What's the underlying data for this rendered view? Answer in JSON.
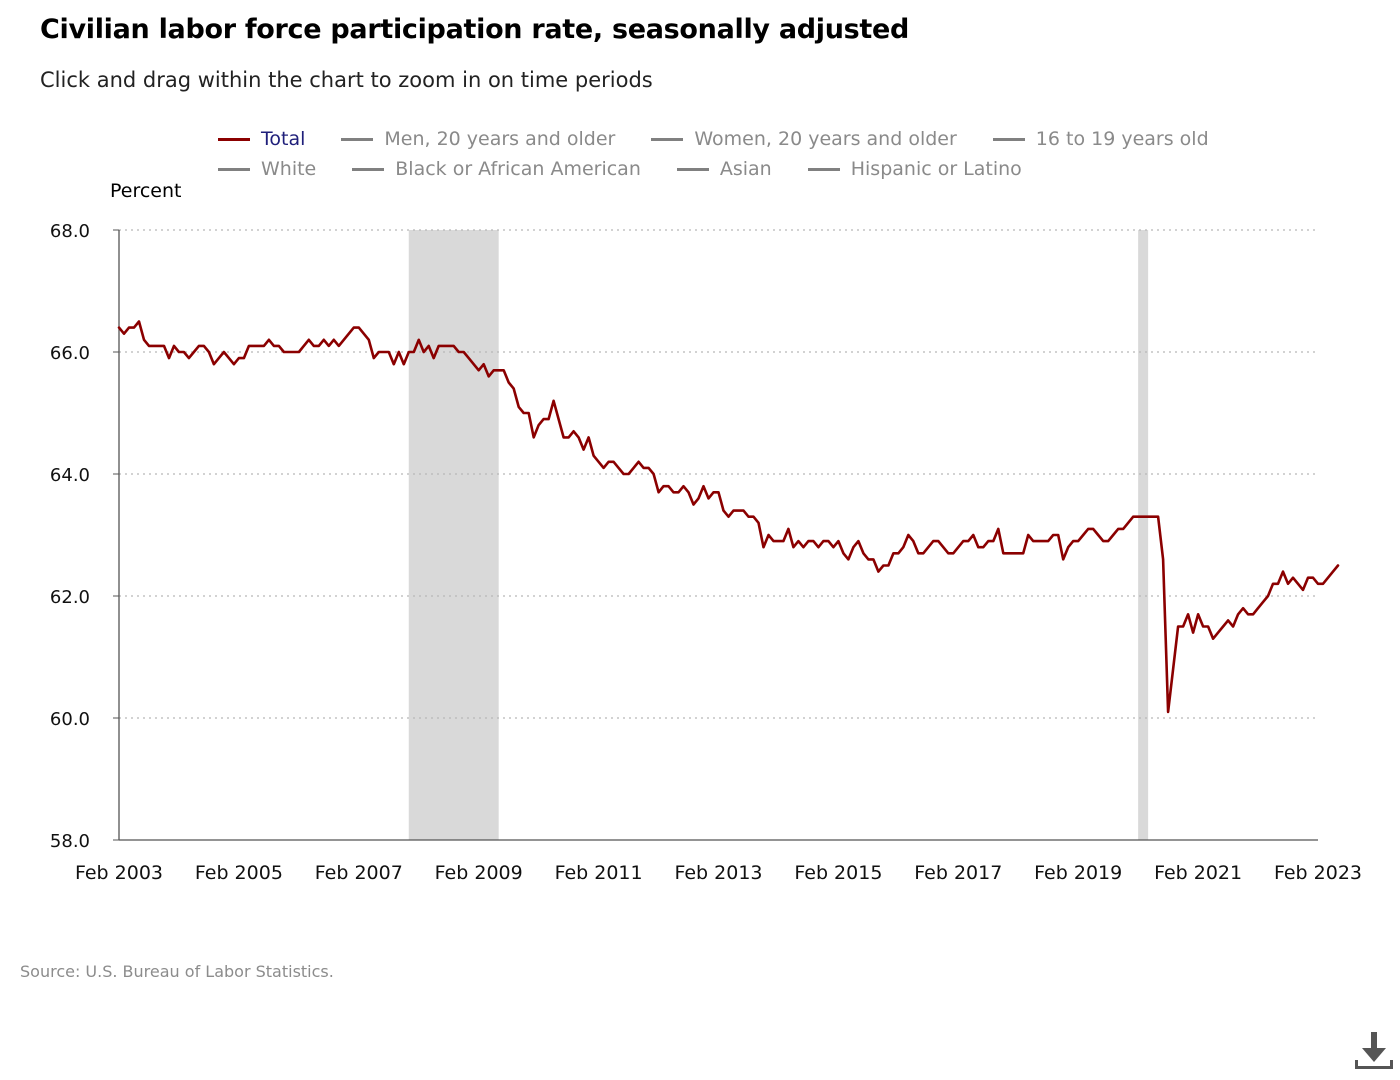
{
  "title": "Civilian labor force participation rate, seasonally adjusted",
  "subtitle": "Click and drag within the chart to zoom in on time periods",
  "source": "Source: U.S. Bureau of Labor Statistics.",
  "legend": {
    "row1": [
      {
        "label": "Total",
        "color": "#8b0000",
        "active": true
      },
      {
        "label": "Men, 20 years and older",
        "color": "#808080",
        "active": false
      },
      {
        "label": "Women, 20 years and older",
        "color": "#808080",
        "active": false
      },
      {
        "label": "16 to 19 years old",
        "color": "#808080",
        "active": false
      }
    ],
    "row2": [
      {
        "label": "White",
        "color": "#808080",
        "active": false
      },
      {
        "label": "Black or African American",
        "color": "#808080",
        "active": false
      },
      {
        "label": "Asian",
        "color": "#808080",
        "active": false
      },
      {
        "label": "Hispanic or Latino",
        "color": "#808080",
        "active": false
      }
    ]
  },
  "icons": {
    "download": "download-icon"
  },
  "chart_data": {
    "type": "line",
    "title": "Civilian labor force participation rate, seasonally adjusted",
    "ylabel": "Percent",
    "xlabel": "",
    "ylim": [
      58.0,
      68.0
    ],
    "yticks": [
      "58.0",
      "60.0",
      "62.0",
      "64.0",
      "66.0",
      "68.0"
    ],
    "xlim": [
      "2003-02",
      "2023-02"
    ],
    "xticks": [
      "Feb 2003",
      "Feb 2005",
      "Feb 2007",
      "Feb 2009",
      "Feb 2011",
      "Feb 2013",
      "Feb 2015",
      "Feb 2017",
      "Feb 2019",
      "Feb 2021",
      "Feb 2023"
    ],
    "grid": "horizontal dotted",
    "legend_position": "top",
    "line_color": "#8b0000",
    "recession_color": "#d9d9d9",
    "recessions": [
      {
        "start": "2007-12",
        "end": "2009-06"
      },
      {
        "start": "2020-02",
        "end": "2020-04"
      }
    ],
    "series": [
      {
        "name": "Total",
        "points": [
          [
            "2003-02",
            66.4
          ],
          [
            "2003-03",
            66.3
          ],
          [
            "2003-04",
            66.4
          ],
          [
            "2003-05",
            66.4
          ],
          [
            "2003-06",
            66.5
          ],
          [
            "2003-07",
            66.2
          ],
          [
            "2003-08",
            66.1
          ],
          [
            "2003-09",
            66.1
          ],
          [
            "2003-10",
            66.1
          ],
          [
            "2003-11",
            66.1
          ],
          [
            "2003-12",
            65.9
          ],
          [
            "2004-01",
            66.1
          ],
          [
            "2004-02",
            66.0
          ],
          [
            "2004-03",
            66.0
          ],
          [
            "2004-04",
            65.9
          ],
          [
            "2004-05",
            66.0
          ],
          [
            "2004-06",
            66.1
          ],
          [
            "2004-07",
            66.1
          ],
          [
            "2004-08",
            66.0
          ],
          [
            "2004-09",
            65.8
          ],
          [
            "2004-10",
            65.9
          ],
          [
            "2004-11",
            66.0
          ],
          [
            "2004-12",
            65.9
          ],
          [
            "2005-01",
            65.8
          ],
          [
            "2005-02",
            65.9
          ],
          [
            "2005-03",
            65.9
          ],
          [
            "2005-04",
            66.1
          ],
          [
            "2005-05",
            66.1
          ],
          [
            "2005-06",
            66.1
          ],
          [
            "2005-07",
            66.1
          ],
          [
            "2005-08",
            66.2
          ],
          [
            "2005-09",
            66.1
          ],
          [
            "2005-10",
            66.1
          ],
          [
            "2005-11",
            66.0
          ],
          [
            "2005-12",
            66.0
          ],
          [
            "2006-01",
            66.0
          ],
          [
            "2006-02",
            66.0
          ],
          [
            "2006-03",
            66.1
          ],
          [
            "2006-04",
            66.2
          ],
          [
            "2006-05",
            66.1
          ],
          [
            "2006-06",
            66.1
          ],
          [
            "2006-07",
            66.2
          ],
          [
            "2006-08",
            66.1
          ],
          [
            "2006-09",
            66.2
          ],
          [
            "2006-10",
            66.1
          ],
          [
            "2006-11",
            66.2
          ],
          [
            "2006-12",
            66.3
          ],
          [
            "2007-01",
            66.4
          ],
          [
            "2007-02",
            66.4
          ],
          [
            "2007-03",
            66.3
          ],
          [
            "2007-04",
            66.2
          ],
          [
            "2007-05",
            65.9
          ],
          [
            "2007-06",
            66.0
          ],
          [
            "2007-07",
            66.0
          ],
          [
            "2007-08",
            66.0
          ],
          [
            "2007-09",
            65.8
          ],
          [
            "2007-10",
            66.0
          ],
          [
            "2007-11",
            65.8
          ],
          [
            "2007-12",
            66.0
          ],
          [
            "2008-01",
            66.0
          ],
          [
            "2008-02",
            66.2
          ],
          [
            "2008-03",
            66.0
          ],
          [
            "2008-04",
            66.1
          ],
          [
            "2008-05",
            65.9
          ],
          [
            "2008-06",
            66.1
          ],
          [
            "2008-07",
            66.1
          ],
          [
            "2008-08",
            66.1
          ],
          [
            "2008-09",
            66.1
          ],
          [
            "2008-10",
            66.0
          ],
          [
            "2008-11",
            66.0
          ],
          [
            "2008-12",
            65.9
          ],
          [
            "2009-01",
            65.8
          ],
          [
            "2009-02",
            65.7
          ],
          [
            "2009-03",
            65.8
          ],
          [
            "2009-04",
            65.6
          ],
          [
            "2009-05",
            65.7
          ],
          [
            "2009-06",
            65.7
          ],
          [
            "2009-07",
            65.7
          ],
          [
            "2009-08",
            65.5
          ],
          [
            "2009-09",
            65.4
          ],
          [
            "2009-10",
            65.1
          ],
          [
            "2009-11",
            65.0
          ],
          [
            "2009-12",
            65.0
          ],
          [
            "2010-01",
            64.6
          ],
          [
            "2010-02",
            64.8
          ],
          [
            "2010-03",
            64.9
          ],
          [
            "2010-04",
            64.9
          ],
          [
            "2010-05",
            65.2
          ],
          [
            "2010-06",
            64.9
          ],
          [
            "2010-07",
            64.6
          ],
          [
            "2010-08",
            64.6
          ],
          [
            "2010-09",
            64.7
          ],
          [
            "2010-10",
            64.6
          ],
          [
            "2010-11",
            64.4
          ],
          [
            "2010-12",
            64.6
          ],
          [
            "2011-01",
            64.3
          ],
          [
            "2011-02",
            64.2
          ],
          [
            "2011-03",
            64.1
          ],
          [
            "2011-04",
            64.2
          ],
          [
            "2011-05",
            64.2
          ],
          [
            "2011-06",
            64.1
          ],
          [
            "2011-07",
            64.0
          ],
          [
            "2011-08",
            64.0
          ],
          [
            "2011-09",
            64.1
          ],
          [
            "2011-10",
            64.2
          ],
          [
            "2011-11",
            64.1
          ],
          [
            "2011-12",
            64.1
          ],
          [
            "2012-01",
            64.0
          ],
          [
            "2012-02",
            63.7
          ],
          [
            "2012-03",
            63.8
          ],
          [
            "2012-04",
            63.8
          ],
          [
            "2012-05",
            63.7
          ],
          [
            "2012-06",
            63.7
          ],
          [
            "2012-07",
            63.8
          ],
          [
            "2012-08",
            63.7
          ],
          [
            "2012-09",
            63.5
          ],
          [
            "2012-10",
            63.6
          ],
          [
            "2012-11",
            63.8
          ],
          [
            "2012-12",
            63.6
          ],
          [
            "2013-01",
            63.7
          ],
          [
            "2013-02",
            63.7
          ],
          [
            "2013-03",
            63.4
          ],
          [
            "2013-04",
            63.3
          ],
          [
            "2013-05",
            63.4
          ],
          [
            "2013-06",
            63.4
          ],
          [
            "2013-07",
            63.4
          ],
          [
            "2013-08",
            63.3
          ],
          [
            "2013-09",
            63.3
          ],
          [
            "2013-10",
            63.2
          ],
          [
            "2013-11",
            62.8
          ],
          [
            "2013-12",
            63.0
          ],
          [
            "2014-01",
            62.9
          ],
          [
            "2014-02",
            62.9
          ],
          [
            "2014-03",
            62.9
          ],
          [
            "2014-04",
            63.1
          ],
          [
            "2014-05",
            62.8
          ],
          [
            "2014-06",
            62.9
          ],
          [
            "2014-07",
            62.8
          ],
          [
            "2014-08",
            62.9
          ],
          [
            "2014-09",
            62.9
          ],
          [
            "2014-10",
            62.8
          ],
          [
            "2014-11",
            62.9
          ],
          [
            "2014-12",
            62.9
          ],
          [
            "2015-01",
            62.8
          ],
          [
            "2015-02",
            62.9
          ],
          [
            "2015-03",
            62.7
          ],
          [
            "2015-04",
            62.6
          ],
          [
            "2015-05",
            62.8
          ],
          [
            "2015-06",
            62.9
          ],
          [
            "2015-07",
            62.7
          ],
          [
            "2015-08",
            62.6
          ],
          [
            "2015-09",
            62.6
          ],
          [
            "2015-10",
            62.4
          ],
          [
            "2015-11",
            62.5
          ],
          [
            "2015-12",
            62.5
          ],
          [
            "2016-01",
            62.7
          ],
          [
            "2016-02",
            62.7
          ],
          [
            "2016-03",
            62.8
          ],
          [
            "2016-04",
            63.0
          ],
          [
            "2016-05",
            62.9
          ],
          [
            "2016-06",
            62.7
          ],
          [
            "2016-07",
            62.7
          ],
          [
            "2016-08",
            62.8
          ],
          [
            "2016-09",
            62.9
          ],
          [
            "2016-10",
            62.9
          ],
          [
            "2016-11",
            62.8
          ],
          [
            "2016-12",
            62.7
          ],
          [
            "2017-01",
            62.7
          ],
          [
            "2017-02",
            62.8
          ],
          [
            "2017-03",
            62.9
          ],
          [
            "2017-04",
            62.9
          ],
          [
            "2017-05",
            63.0
          ],
          [
            "2017-06",
            62.8
          ],
          [
            "2017-07",
            62.8
          ],
          [
            "2017-08",
            62.9
          ],
          [
            "2017-09",
            62.9
          ],
          [
            "2017-10",
            63.1
          ],
          [
            "2017-11",
            62.7
          ],
          [
            "2017-12",
            62.7
          ],
          [
            "2018-01",
            62.7
          ],
          [
            "2018-02",
            62.7
          ],
          [
            "2018-03",
            62.7
          ],
          [
            "2018-04",
            63.0
          ],
          [
            "2018-05",
            62.9
          ],
          [
            "2018-06",
            62.9
          ],
          [
            "2018-07",
            62.9
          ],
          [
            "2018-08",
            62.9
          ],
          [
            "2018-09",
            63.0
          ],
          [
            "2018-10",
            63.0
          ],
          [
            "2018-11",
            62.6
          ],
          [
            "2018-12",
            62.8
          ],
          [
            "2019-01",
            62.9
          ],
          [
            "2019-02",
            62.9
          ],
          [
            "2019-03",
            63.0
          ],
          [
            "2019-04",
            63.1
          ],
          [
            "2019-05",
            63.1
          ],
          [
            "2019-06",
            63.0
          ],
          [
            "2019-07",
            62.9
          ],
          [
            "2019-08",
            62.9
          ],
          [
            "2019-09",
            63.0
          ],
          [
            "2019-10",
            63.1
          ],
          [
            "2019-11",
            63.1
          ],
          [
            "2019-12",
            63.2
          ],
          [
            "2020-01",
            63.3
          ],
          [
            "2020-02",
            63.3
          ],
          [
            "2020-03",
            63.3
          ],
          [
            "2020-04",
            63.3
          ],
          [
            "2020-05",
            63.3
          ],
          [
            "2020-06",
            63.3
          ],
          [
            "2020-07",
            62.6
          ],
          [
            "2020-08",
            60.1
          ],
          [
            "2020-09",
            60.8
          ],
          [
            "2020-10",
            61.5
          ],
          [
            "2020-11",
            61.5
          ],
          [
            "2020-12",
            61.7
          ],
          [
            "2021-01",
            61.4
          ],
          [
            "2021-02",
            61.7
          ],
          [
            "2021-03",
            61.5
          ],
          [
            "2021-04",
            61.5
          ],
          [
            "2021-05",
            61.3
          ],
          [
            "2021-06",
            61.4
          ],
          [
            "2021-07",
            61.5
          ],
          [
            "2021-08",
            61.6
          ],
          [
            "2021-09",
            61.5
          ],
          [
            "2021-10",
            61.7
          ],
          [
            "2021-11",
            61.8
          ],
          [
            "2021-12",
            61.7
          ],
          [
            "2022-01",
            61.7
          ],
          [
            "2022-02",
            61.8
          ],
          [
            "2022-03",
            61.9
          ],
          [
            "2022-04",
            62.0
          ],
          [
            "2022-05",
            62.2
          ],
          [
            "2022-06",
            62.2
          ],
          [
            "2022-07",
            62.4
          ],
          [
            "2022-08",
            62.2
          ],
          [
            "2022-09",
            62.3
          ],
          [
            "2022-10",
            62.2
          ],
          [
            "2022-11",
            62.1
          ],
          [
            "2022-12",
            62.3
          ],
          [
            "2023-01",
            62.3
          ],
          [
            "2023-02",
            62.2
          ],
          [
            "2023-03",
            62.2
          ],
          [
            "2023-04",
            62.3
          ],
          [
            "2023-05",
            62.4
          ],
          [
            "2023-06",
            62.5
          ]
        ]
      }
    ]
  }
}
